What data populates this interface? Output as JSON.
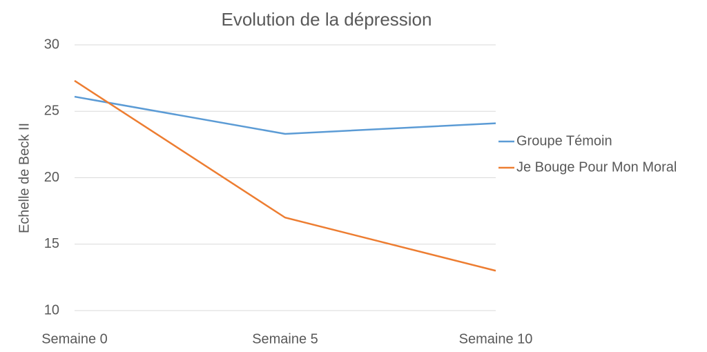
{
  "chart_data": {
    "type": "line",
    "title": "Evolution de la dépression",
    "y_label": "Echelle de Beck II",
    "categories": [
      "Semaine 0",
      "Semaine 5",
      "Semaine 10"
    ],
    "series": [
      {
        "name": "Groupe Témoin",
        "color": "#5b9bd5",
        "values": [
          26.1,
          23.3,
          24.1
        ]
      },
      {
        "name": "Je Bouge Pour Mon Moral",
        "color": "#ed7d31",
        "values": [
          27.3,
          17.0,
          13.0
        ]
      }
    ],
    "ylim": [
      10,
      30
    ],
    "yticks": [
      10,
      15,
      20,
      25,
      30
    ],
    "grid": true,
    "legend": "right"
  }
}
